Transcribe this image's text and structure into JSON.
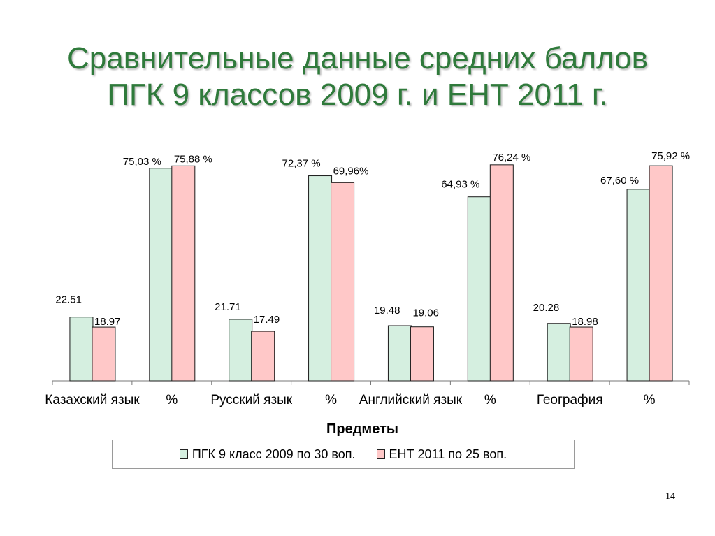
{
  "title": {
    "line1": "Сравнительные данные средних баллов",
    "line2": "ПГК 9 классов 2009 г. и ЕНТ 2011 г."
  },
  "page_number": "14",
  "colors": {
    "title": "#2f7a3b",
    "series1_fill": "#d5efe0",
    "series2_fill": "#ffc8c8",
    "bar_border": "#1a1a1a"
  },
  "chart_data": {
    "type": "bar",
    "categories": [
      "Казахский язык",
      "%",
      "Русский язык",
      "%",
      "Английский язык",
      "%",
      "География",
      "%"
    ],
    "xlabel": "Предметы",
    "ylabel": "",
    "ylim": [
      0,
      80
    ],
    "grid": false,
    "legend_position": "bottom",
    "series": [
      {
        "name": "ПГК 9 класс 2009 по 30 воп.",
        "values": [
          22.51,
          75.03,
          21.71,
          72.37,
          19.48,
          64.93,
          20.28,
          67.6
        ],
        "labels": [
          "22.51",
          "75,03 %",
          "21.71",
          "72,37 %",
          "19.48",
          "64,93 %",
          "20.28",
          "67,60 %"
        ]
      },
      {
        "name": "ЕНТ 2011 по 25 воп.",
        "values": [
          18.97,
          75.88,
          17.49,
          69.96,
          19.06,
          76.24,
          18.98,
          75.92
        ],
        "labels": [
          "18.97",
          "75,88 %",
          "17.49",
          "69,96%",
          "19.06",
          "76,24 %",
          "18.98",
          "75,92 %"
        ]
      }
    ]
  }
}
